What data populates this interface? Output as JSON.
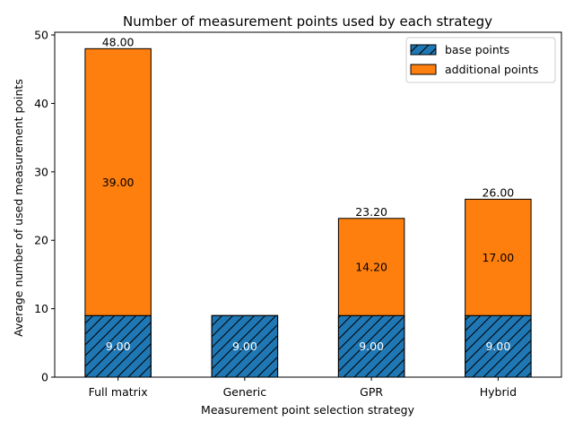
{
  "chart_data": {
    "type": "bar",
    "stacked": true,
    "title": "Number of measurement points used by each strategy",
    "xlabel": "Measurement point selection strategy",
    "ylabel": "Average number of used measurement points",
    "categories": [
      "Full matrix",
      "Generic",
      "GPR",
      "Hybrid"
    ],
    "series": [
      {
        "name": "base points",
        "values": [
          9,
          9,
          9,
          9
        ],
        "labels": [
          "9.00",
          "9.00",
          "9.00",
          "9.00"
        ],
        "color": "#1f77b4",
        "hatch": "diagonal",
        "label_color": "#ffffff"
      },
      {
        "name": "additional points",
        "values": [
          39,
          0,
          14.2,
          17
        ],
        "labels": [
          "39.00",
          "",
          "14.20",
          "17.00"
        ],
        "color": "#ff7f0e",
        "hatch": "none",
        "label_color": "#000000"
      }
    ],
    "totals": [
      "48.00",
      "",
      "23.20",
      "26.00"
    ],
    "ylim": [
      0,
      50.4
    ],
    "yticks": [
      {
        "value": 0,
        "label": "0"
      },
      {
        "value": 10,
        "label": "10"
      },
      {
        "value": 20,
        "label": "20"
      },
      {
        "value": 30,
        "label": "30"
      },
      {
        "value": 40,
        "label": "40"
      },
      {
        "value": 50,
        "label": "50"
      }
    ],
    "legend": "top-right",
    "grid": false
  }
}
